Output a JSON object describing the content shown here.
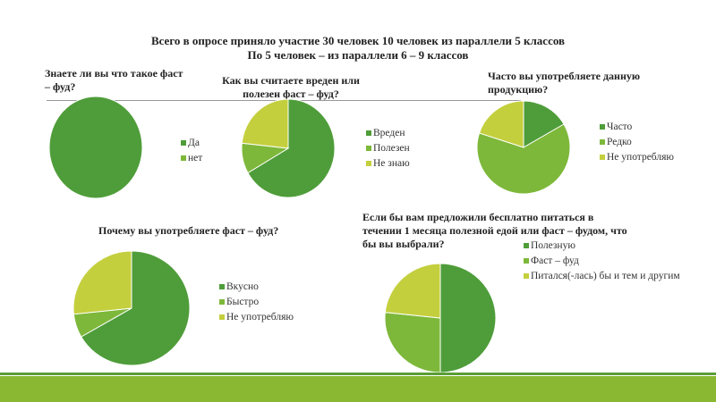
{
  "title_line1": "Всего в опросе приняло участие 30 человек 10 человек из параллели 5 классов",
  "title_line2": "По 5 человек – из параллели 6 – 9 классов",
  "colors": [
    "#4f9d3a",
    "#7db83a",
    "#c4cf3e"
  ],
  "chart_data": [
    {
      "type": "pie",
      "title": "Знаете ли вы что такое фаст – фуд?",
      "categories": [
        "Да",
        "нет"
      ],
      "values": [
        30,
        0
      ],
      "legend": "right"
    },
    {
      "type": "pie",
      "title": "Как вы считаете вреден или полезен фаст – фуд?",
      "categories": [
        "Вреден",
        "Полезен",
        "Не знаю"
      ],
      "values": [
        20,
        3,
        7
      ],
      "legend": "right"
    },
    {
      "type": "pie",
      "title": "Часто вы употребляете данную продукцию?",
      "categories": [
        "Часто",
        "Редко",
        "Не употребляю"
      ],
      "values": [
        5,
        19,
        6
      ],
      "legend": "right"
    },
    {
      "type": "pie",
      "title": "Почему вы употребляете фаст – фуд?",
      "categories": [
        "Вкусно",
        "Быстро",
        "Не употребляю"
      ],
      "values": [
        20,
        2,
        8
      ],
      "legend": "right"
    },
    {
      "type": "pie",
      "title": "Если бы вам предложили бесплатно питаться в течении 1 месяца полезной едой или фаст – фудом, что бы вы выбрали?",
      "categories": [
        "Полезную",
        "Фаст – фуд",
        "Питался(-лась) бы и тем и другим"
      ],
      "values": [
        15,
        8,
        7
      ],
      "legend": "right"
    }
  ]
}
